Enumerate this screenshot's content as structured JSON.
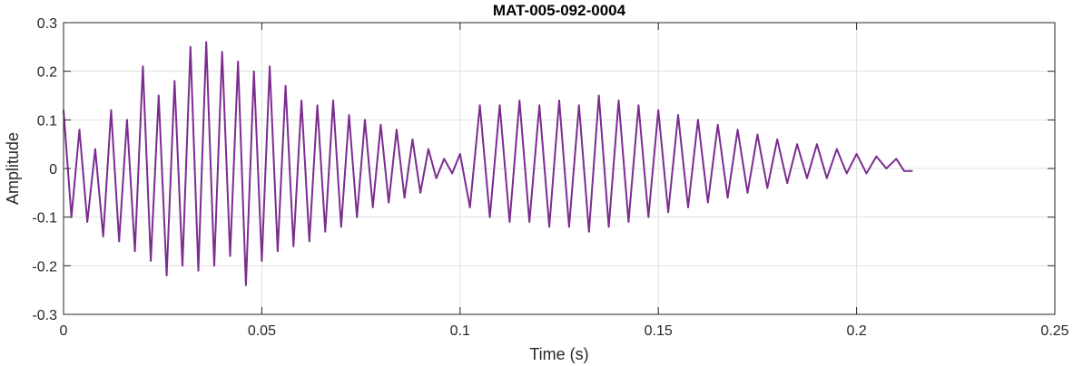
{
  "chart_data": {
    "type": "line",
    "title": "MAT-005-092-0004",
    "xlabel": "Time (s)",
    "ylabel": "Amplitude",
    "xlim": [
      0,
      0.25
    ],
    "ylim": [
      -0.3,
      0.3
    ],
    "xticks": [
      0,
      0.05,
      0.1,
      0.15,
      0.2,
      0.25
    ],
    "xtick_labels": [
      "0",
      "0.05",
      "0.1",
      "0.15",
      "0.2",
      "0.25"
    ],
    "yticks": [
      -0.3,
      -0.2,
      -0.1,
      0,
      0.1,
      0.2,
      0.3
    ],
    "ytick_labels": [
      "-0.3",
      "-0.2",
      "-0.1",
      "0",
      "0.1",
      "0.2",
      "0.3"
    ],
    "grid": true,
    "series": [
      {
        "color": "#7b2d8e",
        "x": [
          0,
          0.002,
          0.004,
          0.006,
          0.008,
          0.01,
          0.012,
          0.014,
          0.016,
          0.018,
          0.02,
          0.022,
          0.024,
          0.026,
          0.028,
          0.03,
          0.032,
          0.034,
          0.036,
          0.038,
          0.04,
          0.042,
          0.044,
          0.046,
          0.048,
          0.05,
          0.052,
          0.054,
          0.056,
          0.058,
          0.06,
          0.062,
          0.064,
          0.066,
          0.068,
          0.07,
          0.072,
          0.074,
          0.076,
          0.078,
          0.08,
          0.082,
          0.084,
          0.086,
          0.088,
          0.09,
          0.092,
          0.094,
          0.096,
          0.098,
          0.1,
          0.1025,
          0.105,
          0.1075,
          0.11,
          0.1125,
          0.115,
          0.1175,
          0.12,
          0.1225,
          0.125,
          0.1275,
          0.13,
          0.1325,
          0.135,
          0.1375,
          0.14,
          0.1425,
          0.145,
          0.1475,
          0.15,
          0.1525,
          0.155,
          0.1575,
          0.16,
          0.1625,
          0.165,
          0.1675,
          0.17,
          0.1725,
          0.175,
          0.1775,
          0.18,
          0.1825,
          0.185,
          0.1875,
          0.19,
          0.1925,
          0.195,
          0.1975,
          0.2,
          0.2025,
          0.205,
          0.2075,
          0.21,
          0.212,
          0.214
        ],
        "y": [
          0.12,
          -0.1,
          0.08,
          -0.11,
          0.04,
          -0.14,
          0.12,
          -0.15,
          0.1,
          -0.17,
          0.21,
          -0.19,
          0.15,
          -0.22,
          0.18,
          -0.2,
          0.25,
          -0.21,
          0.26,
          -0.2,
          0.24,
          -0.18,
          0.22,
          -0.24,
          0.2,
          -0.19,
          0.21,
          -0.17,
          0.17,
          -0.16,
          0.14,
          -0.15,
          0.13,
          -0.13,
          0.14,
          -0.12,
          0.11,
          -0.1,
          0.1,
          -0.08,
          0.09,
          -0.07,
          0.08,
          -0.06,
          0.06,
          -0.05,
          0.04,
          -0.02,
          0.02,
          -0.01,
          0.03,
          -0.08,
          0.13,
          -0.1,
          0.13,
          -0.11,
          0.14,
          -0.11,
          0.13,
          -0.12,
          0.14,
          -0.12,
          0.13,
          -0.13,
          0.15,
          -0.12,
          0.14,
          -0.11,
          0.13,
          -0.1,
          0.12,
          -0.09,
          0.11,
          -0.08,
          0.1,
          -0.07,
          0.09,
          -0.06,
          0.08,
          -0.05,
          0.07,
          -0.04,
          0.06,
          -0.03,
          0.05,
          -0.02,
          0.05,
          -0.02,
          0.04,
          -0.01,
          0.03,
          -0.01,
          0.025,
          0.0,
          0.02,
          -0.005,
          -0.005
        ]
      }
    ]
  }
}
